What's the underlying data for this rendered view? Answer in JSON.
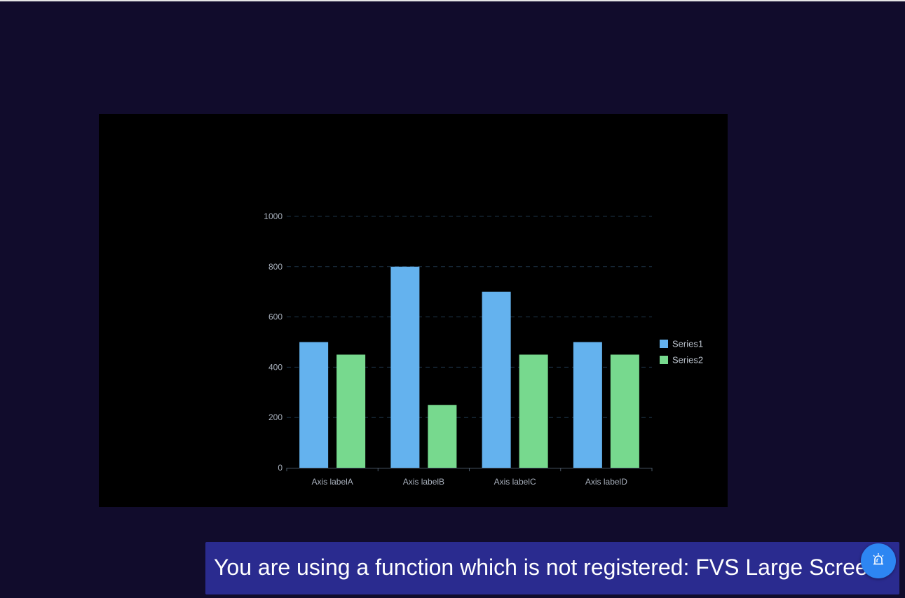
{
  "chart_data": {
    "type": "bar",
    "categories": [
      "Axis labelA",
      "Axis labelB",
      "Axis labelC",
      "Axis labelD"
    ],
    "series": [
      {
        "name": "Series1",
        "values": [
          500,
          800,
          700,
          500
        ],
        "color": "#64b2ee"
      },
      {
        "name": "Series2",
        "values": [
          450,
          250,
          450,
          450
        ],
        "color": "#77d98e"
      }
    ],
    "yticks": [
      "0",
      "200",
      "400",
      "600",
      "800",
      "1000"
    ],
    "ylim": [
      0,
      1000
    ],
    "grid": true,
    "legend": "right"
  },
  "notice": {
    "text": "You are using a function which is not registered: FVS Large Screen"
  },
  "colors": {
    "page_background": "#110c2c",
    "chart_background": "#000000",
    "notice_background": "#2a2b8f",
    "alert_button": "#2d86f2"
  },
  "icons": {
    "alert": "siren-alarm-icon"
  }
}
